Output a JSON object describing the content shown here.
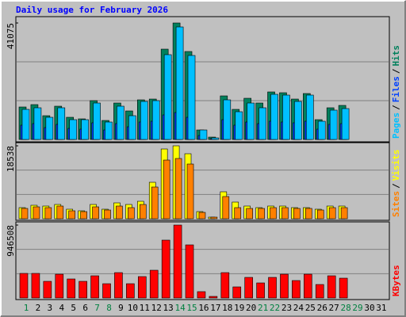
{
  "chart_data": {
    "type": "bar",
    "title": "Daily usage for February 2026",
    "categories": [
      "1",
      "2",
      "3",
      "4",
      "5",
      "6",
      "7",
      "8",
      "9",
      "10",
      "11",
      "12",
      "13",
      "14",
      "15",
      "16",
      "17",
      "18",
      "19",
      "20",
      "21",
      "22",
      "23",
      "24",
      "25",
      "26",
      "27",
      "28",
      "29",
      "30",
      "31"
    ],
    "category_colors": [
      "#008040",
      "#000000",
      "#000000",
      "#000000",
      "#000000",
      "#000000",
      "#008040",
      "#008040",
      "#000000",
      "#000000",
      "#000000",
      "#000000",
      "#000000",
      "#008040",
      "#008040",
      "#000000",
      "#000000",
      "#000000",
      "#000000",
      "#000000",
      "#008040",
      "#008040",
      "#000000",
      "#000000",
      "#000000",
      "#000000",
      "#000000",
      "#008040",
      "#008040",
      "#000000",
      "#000000"
    ],
    "legend_separator": "/",
    "panels": [
      {
        "ylim": [
          0,
          41075
        ],
        "yticks": [
          41075
        ],
        "grid_values": [
          13692,
          27383
        ],
        "series": [
          {
            "name": "Pages",
            "color": "#00c0ff",
            "values": [
              10617,
              11176,
              7823,
              11176,
              6985,
              6985,
              12853,
              6147,
              11735,
              8382,
              13412,
              13691,
              29897,
              39678,
              29618,
              3353,
              559,
              13971,
              9779,
              12853,
              11176,
              15926,
              15647,
              13412,
              15647,
              6426,
              10338,
              10897,
              null,
              null,
              null
            ]
          },
          {
            "name": "Files",
            "color": "#0040ff",
            "values": [
              5030,
              5590,
              4190,
              5310,
              3910,
              3630,
              5870,
              3350,
              5590,
              4470,
              6150,
              6430,
              8660,
              9500,
              7820,
              1400,
              280,
              6990,
              5030,
              6150,
              5590,
              6430,
              6150,
              5870,
              6430,
              3630,
              5310,
              5590,
              null,
              null,
              null
            ]
          },
          {
            "name": "Hits",
            "color": "#00805c",
            "values": [
              11456,
              12294,
              8382,
              11735,
              7823,
              7265,
              13691,
              6706,
              12853,
              10059,
              13971,
              14250,
              31853,
              41075,
              31015,
              3353,
              838,
              15368,
              10618,
              14529,
              12853,
              16765,
              16485,
              14250,
              16206,
              6985,
              11176,
              12015,
              null,
              null,
              null
            ]
          }
        ]
      },
      {
        "ylim": [
          0,
          18538
        ],
        "yticks": [
          18538
        ],
        "grid_values": [
          6179,
          12359
        ],
        "series": [
          {
            "name": "Sites",
            "color": "#ff8000",
            "values": [
              2620,
              3023,
              2821,
              3224,
              2015,
              1814,
              3023,
              2217,
              3224,
              2821,
              3627,
              8060,
              14911,
              15314,
              13904,
              1612,
              403,
              5642,
              2821,
              2620,
              2620,
              2821,
              2821,
              2620,
              2620,
              2217,
              2821,
              2821,
              null,
              null,
              null
            ]
          },
          {
            "name": "Visits",
            "color": "#ffff00",
            "values": [
              2821,
              3426,
              3224,
              3627,
              2418,
              2015,
              3627,
              2418,
              4030,
              3627,
              4433,
              9269,
              17732,
              18538,
              16523,
              1814,
              403,
              6851,
              4232,
              3224,
              2821,
              3224,
              3224,
              2821,
              2821,
              2418,
              3224,
              3224,
              null,
              null,
              null
            ]
          }
        ]
      },
      {
        "ylim": [
          0,
          946508
        ],
        "yticks": [
          946508
        ],
        "grid_values": [
          315503,
          631005
        ],
        "series": [
          {
            "name": "KBytes",
            "color": "#ff0000",
            "values": [
              318928,
              318928,
              216048,
              308640,
              246912,
              216048,
              288064,
              185184,
              329216,
              185184,
              277776,
              360080,
              751024,
              946508,
              689296,
              82304,
              20576,
              329216,
              144032,
              267488,
              195472,
              267488,
              308640,
              226336,
              308640,
              174896,
              288064,
              257200,
              null,
              null,
              null
            ]
          }
        ]
      }
    ]
  }
}
